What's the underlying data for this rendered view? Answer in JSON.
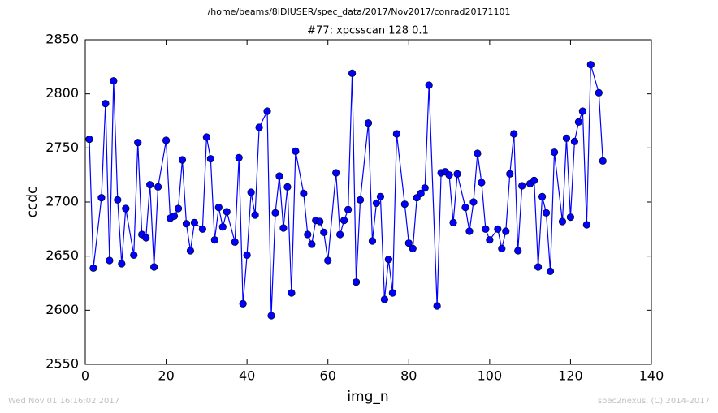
{
  "chart_data": {
    "type": "line",
    "suptitle": "/home/beams/8IDIUSER/spec_data/2017/Nov2017/conrad20171101",
    "title": "#77: xpcsscan 128 0.1",
    "x_label": "img_n",
    "y_label": "ccdc",
    "x": [
      1,
      2,
      4,
      5,
      6,
      7,
      8,
      9,
      10,
      12,
      13,
      14,
      15,
      16,
      17,
      18,
      20,
      21,
      22,
      23,
      24,
      25,
      26,
      27,
      29,
      30,
      31,
      32,
      33,
      34,
      35,
      37,
      38,
      39,
      40,
      41,
      42,
      43,
      45,
      46,
      47,
      48,
      49,
      50,
      51,
      52,
      54,
      55,
      56,
      57,
      58,
      59,
      60,
      62,
      63,
      64,
      65,
      66,
      67,
      68,
      70,
      71,
      72,
      73,
      74,
      75,
      76,
      77,
      79,
      80,
      81,
      82,
      83,
      84,
      85,
      87,
      88,
      89,
      90,
      91,
      92,
      94,
      95,
      96,
      97,
      98,
      99,
      100,
      102,
      103,
      104,
      105,
      106,
      107,
      108,
      110,
      111,
      112,
      113,
      114,
      115,
      116,
      118,
      119,
      120,
      121,
      122,
      123,
      124,
      125,
      127,
      128
    ],
    "series": [
      {
        "name": "ccdc",
        "color": "#0000ff",
        "values": [
          2758,
          2639,
          2704,
          2791,
          2646,
          2812,
          2702,
          2643,
          2694,
          2651,
          2755,
          2670,
          2667,
          2716,
          2640,
          2714,
          2757,
          2685,
          2687,
          2694,
          2739,
          2680,
          2655,
          2681,
          2675,
          2760,
          2740,
          2665,
          2695,
          2677,
          2691,
          2663,
          2741,
          2606,
          2651,
          2709,
          2688,
          2769,
          2784,
          2595,
          2690,
          2724,
          2676,
          2714,
          2616,
          2747,
          2708,
          2670,
          2661,
          2683,
          2682,
          2672,
          2646,
          2727,
          2670,
          2683,
          2693,
          2819,
          2626,
          2702,
          2773,
          2664,
          2699,
          2705,
          2610,
          2647,
          2616,
          2763,
          2698,
          2662,
          2657,
          2704,
          2708,
          2713,
          2808,
          2604,
          2727,
          2728,
          2725,
          2681,
          2726,
          2695,
          2673,
          2700,
          2745,
          2718,
          2675,
          2665,
          2675,
          2657,
          2673,
          2726,
          2763,
          2655,
          2715,
          2717,
          2720,
          2640,
          2705,
          2690,
          2636,
          2746,
          2682,
          2759,
          2686,
          2756,
          2774,
          2784,
          2679,
          2827,
          2801,
          2738
        ]
      }
    ],
    "xlim": [
      0,
      140
    ],
    "xticks": [
      0,
      20,
      40,
      60,
      80,
      100,
      120,
      140
    ],
    "ylim": [
      2550,
      2850
    ],
    "yticks": [
      2550,
      2600,
      2650,
      2700,
      2750,
      2800,
      2850
    ]
  },
  "footer_left": "Wed Nov 01 16:16:02 2017",
  "footer_right": "spec2nexus, (C) 2014-2017"
}
